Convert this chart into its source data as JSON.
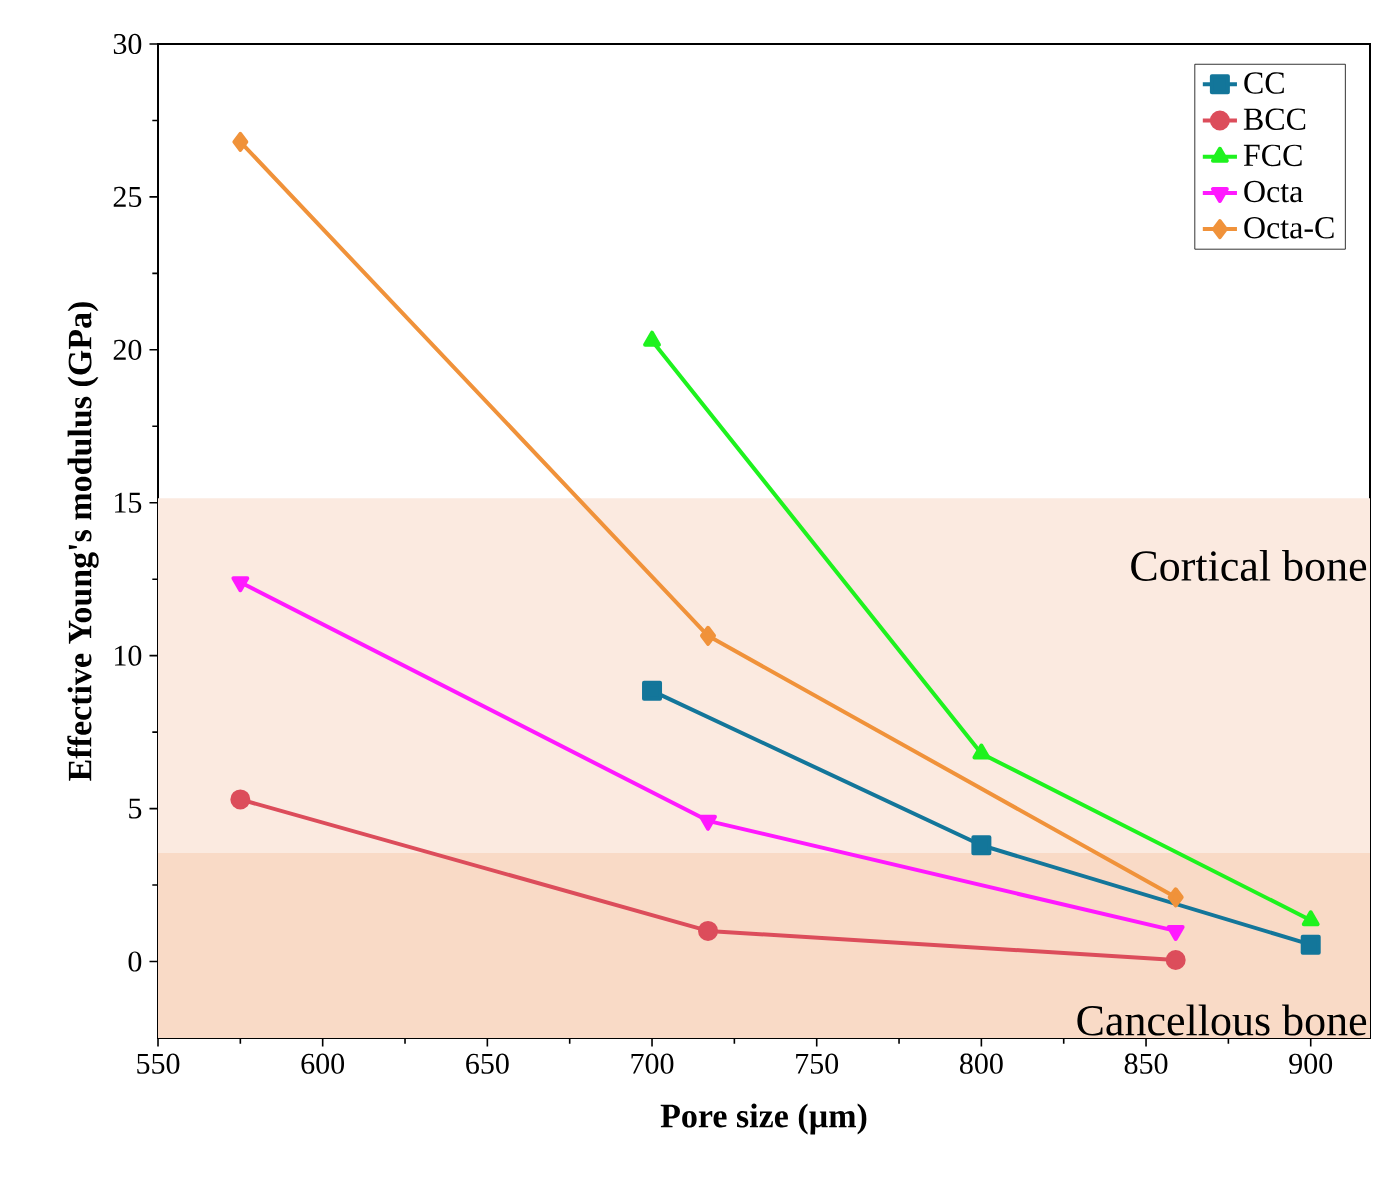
{
  "chart_data": {
    "type": "line",
    "xlabel": "Pore size (µm)",
    "ylabel": "Effective Young's modulus (GPa)",
    "xlim": [
      550,
      918
    ],
    "ylim": [
      -2.5,
      30
    ],
    "xticks": [
      550,
      600,
      650,
      700,
      750,
      800,
      850,
      900
    ],
    "yticks": [
      0,
      5,
      10,
      15,
      20,
      25,
      30
    ],
    "legend": "top right",
    "line_style": "solid",
    "bands": [
      {
        "axis": "y",
        "from": 3.55,
        "to": 15.15,
        "label": "Cortical bone",
        "color": "#fbeae0"
      },
      {
        "axis": "y",
        "from": -2.5,
        "to": 3.55,
        "label": "Cancellous bone",
        "color": "#f9dac6"
      }
    ],
    "series": [
      {
        "name": "CC",
        "color": "#13769a",
        "marker": "square",
        "x": [
          700,
          800,
          900
        ],
        "values": [
          8.85,
          3.8,
          0.55
        ]
      },
      {
        "name": "BCC",
        "color": "#dc4d5b",
        "marker": "circle",
        "x": [
          575,
          717,
          859
        ],
        "values": [
          5.3,
          1.0,
          0.05
        ]
      },
      {
        "name": "FCC",
        "color": "#1ef21e",
        "marker": "triangle",
        "x": [
          700,
          800,
          900
        ],
        "values": [
          20.3,
          6.8,
          1.35
        ]
      },
      {
        "name": "Octa",
        "color": "#ff19ff",
        "marker": "triangle-down",
        "x": [
          575,
          717,
          859
        ],
        "values": [
          12.4,
          4.6,
          1.0
        ]
      },
      {
        "name": "Octa-C",
        "color": "#f0923a",
        "marker": "diamond",
        "x": [
          575,
          717,
          859
        ],
        "values": [
          26.8,
          10.65,
          2.1
        ]
      }
    ]
  }
}
